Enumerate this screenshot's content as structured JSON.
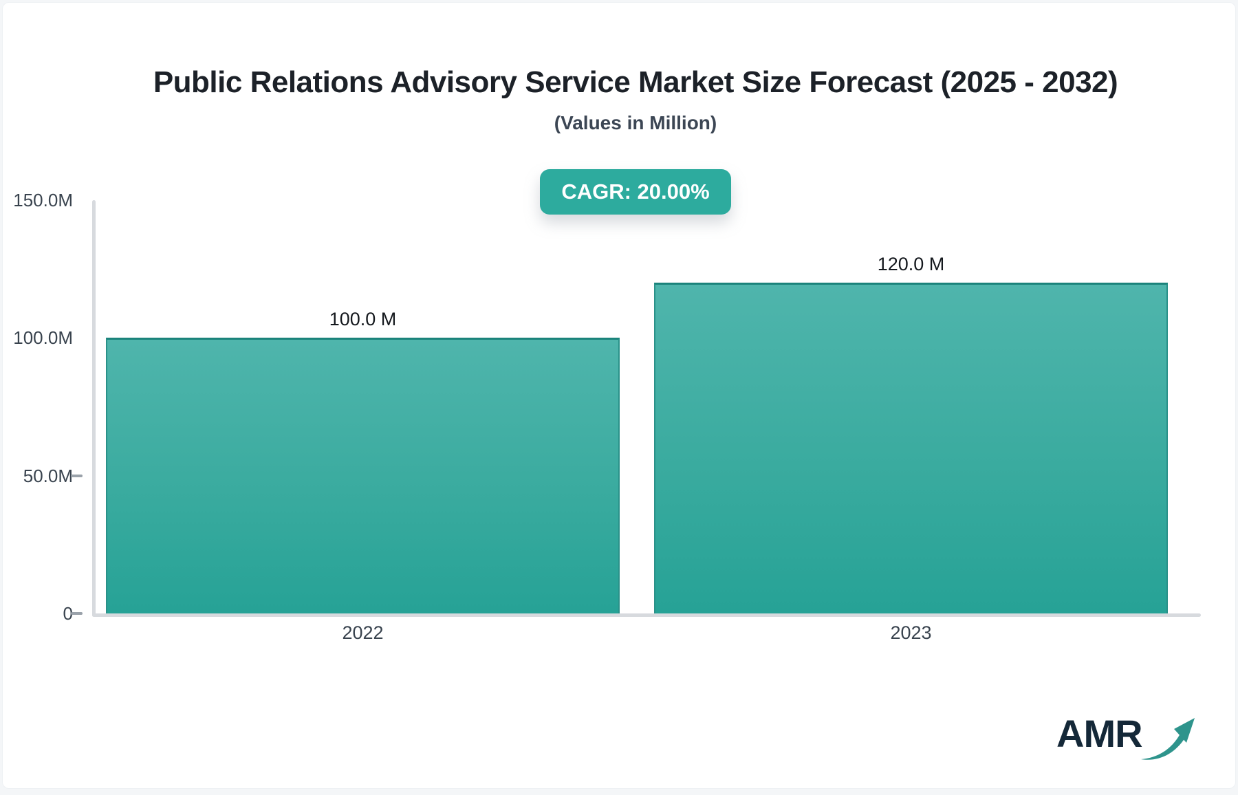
{
  "header": {
    "title": "Public Relations Advisory Service Market Size Forecast (2025 - 2032)",
    "subtitle": "(Values in Million)"
  },
  "badge": {
    "label": "CAGR: 20.00%"
  },
  "chart_data": {
    "type": "bar",
    "title": "Public Relations Advisory Service Market Size Forecast (2025 - 2032)",
    "subtitle": "(Values in Million)",
    "cagr_annotation": "CAGR: 20.00%",
    "categories": [
      "2022",
      "2023"
    ],
    "values": [
      100.0,
      120.0
    ],
    "value_labels": [
      "100.0 M",
      "120.0 M"
    ],
    "ylim": [
      0,
      150
    ],
    "yticks": [
      "150.0M",
      "100.0M",
      "50.0M",
      "0"
    ],
    "ytick_values": [
      150,
      100,
      50,
      0
    ],
    "dash_tick_values": [
      50,
      0
    ],
    "xlabel": "",
    "ylabel": "",
    "grid": false,
    "legend": false
  },
  "branding": {
    "logo_text": "AMR"
  },
  "colors": {
    "accent_teal": "#2dab9e",
    "bar_gradient_top": "#4fb5ac",
    "bar_gradient_bottom": "#26a296",
    "bar_border": "#1b837b",
    "axis_line": "#d7dade",
    "tick_dash": "#9aa2aa",
    "title_text": "#1c2128",
    "slate_text": "#39434e",
    "badge_text": "#ffffff",
    "logo_navy": "#142838",
    "logo_arrow": "#2e948c",
    "page_background": "#f4f6f8",
    "card_background": "#ffffff"
  }
}
